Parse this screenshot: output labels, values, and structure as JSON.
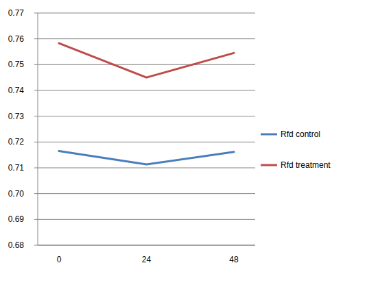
{
  "chart_data": {
    "type": "line",
    "categories": [
      "0",
      "24",
      "48"
    ],
    "series": [
      {
        "name": "Rfd control",
        "color": "#4a7ebb",
        "values": [
          0.7165,
          0.7113,
          0.7162
        ]
      },
      {
        "name": "Rfd treatment",
        "color": "#be4b48",
        "values": [
          0.7583,
          0.745,
          0.7545
        ]
      }
    ],
    "ylim": [
      0.68,
      0.77
    ],
    "yticks": [
      0.68,
      0.69,
      {
        "value": 0.7,
        "label": "0.70"
      },
      0.71,
      0.72,
      0.73,
      0.74,
      0.75,
      0.76,
      0.77
    ],
    "grid": true,
    "legend": "right"
  }
}
